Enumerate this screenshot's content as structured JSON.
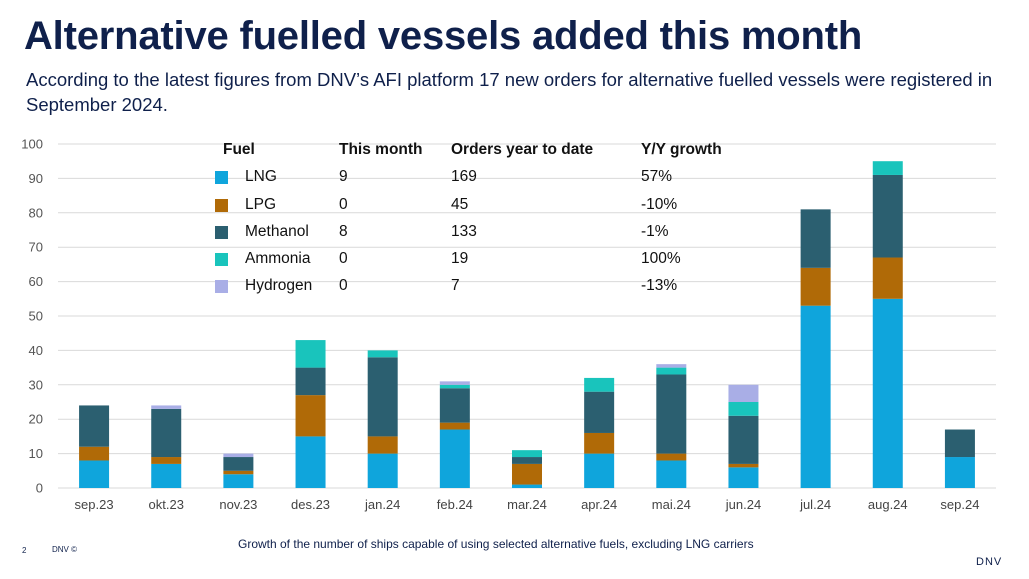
{
  "title": "Alternative fuelled vessels added this month",
  "subtitle": "According to the latest figures from DNV’s AFI platform 17 new orders for alternative fuelled vessels were registered in September 2024.",
  "footnote": "Growth of the number of ships capable of using selected alternative fuels, excluding LNG carriers",
  "page_number": "2",
  "footer_brand": "DNV ©",
  "logo_text": "DNV",
  "legend_table": {
    "headers": {
      "fuel": "Fuel",
      "this_month": "This month",
      "ytd": "Orders year to date",
      "yoy": "Y/Y growth"
    },
    "rows": [
      {
        "fuel": "LNG",
        "this_month": "9",
        "ytd": "169",
        "yoy": "57%",
        "color": "#0fa5dc"
      },
      {
        "fuel": "LPG",
        "this_month": "0",
        "ytd": "45",
        "yoy": "-10%",
        "color": "#b06a07"
      },
      {
        "fuel": "Methanol",
        "this_month": "8",
        "ytd": "133",
        "yoy": "-1%",
        "color": "#2b5f70"
      },
      {
        "fuel": "Ammonia",
        "this_month": "0",
        "ytd": "19",
        "yoy": "100%",
        "color": "#19c4bc"
      },
      {
        "fuel": "Hydrogen",
        "this_month": "0",
        "ytd": "7",
        "yoy": "-13%",
        "color": "#a9aee6"
      }
    ]
  },
  "chart_data": {
    "type": "bar",
    "stacked": true,
    "categories": [
      "sep.23",
      "okt.23",
      "nov.23",
      "des.23",
      "jan.24",
      "feb.24",
      "mar.24",
      "apr.24",
      "mai.24",
      "jun.24",
      "jul.24",
      "aug.24",
      "sep.24"
    ],
    "series": [
      {
        "name": "LNG",
        "color": "#0fa5dc",
        "values": [
          8,
          7,
          4,
          15,
          10,
          17,
          1,
          10,
          8,
          6,
          53,
          55,
          9
        ]
      },
      {
        "name": "LPG",
        "color": "#b06a07",
        "values": [
          4,
          2,
          1,
          12,
          5,
          2,
          6,
          6,
          2,
          1,
          11,
          12,
          0
        ]
      },
      {
        "name": "Methanol",
        "color": "#2b5f70",
        "values": [
          12,
          14,
          4,
          8,
          23,
          10,
          2,
          12,
          23,
          14,
          17,
          24,
          8
        ]
      },
      {
        "name": "Ammonia",
        "color": "#19c4bc",
        "values": [
          0,
          0,
          0,
          8,
          2,
          1,
          2,
          4,
          2,
          4,
          0,
          4,
          0
        ]
      },
      {
        "name": "Hydrogen",
        "color": "#a9aee6",
        "values": [
          0,
          1,
          1,
          0,
          0,
          1,
          0,
          0,
          1,
          5,
          0,
          0,
          0
        ]
      }
    ],
    "yticks": [
      0,
      10,
      20,
      30,
      40,
      50,
      60,
      70,
      80,
      90,
      100
    ],
    "ylim": [
      0,
      100
    ],
    "grid": true,
    "legend": "top-left table"
  }
}
